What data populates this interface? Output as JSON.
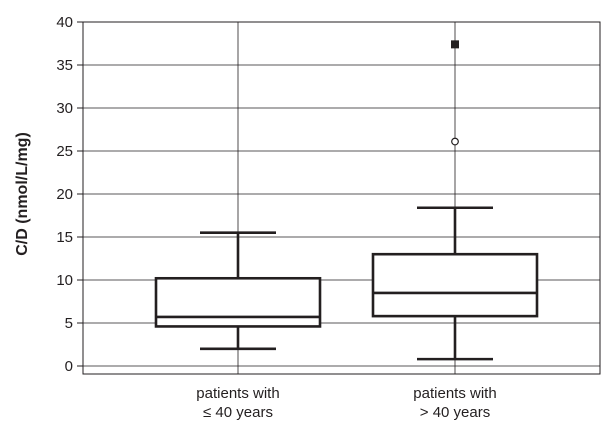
{
  "chart_data": {
    "type": "box",
    "title": "",
    "xlabel": "",
    "ylabel": "C/D (nmol/L/mg)",
    "ylim": [
      0,
      40
    ],
    "yticks": [
      0,
      5,
      10,
      15,
      20,
      25,
      30,
      35,
      40
    ],
    "grid": "y-major",
    "legend": "none",
    "categories": [
      {
        "label_lines": [
          "patients with",
          "≤ 40 years"
        ]
      },
      {
        "label_lines": [
          "patients with",
          "> 40 years"
        ]
      }
    ],
    "boxes": [
      {
        "whisker_low": 2.0,
        "q1": 4.6,
        "median": 5.7,
        "q3": 10.2,
        "whisker_high": 15.5,
        "outliers": [],
        "extremes": []
      },
      {
        "whisker_low": 0.8,
        "q1": 5.8,
        "median": 8.5,
        "q3": 13.0,
        "whisker_high": 18.4,
        "outliers": [
          26.1
        ],
        "extremes": [
          37.4
        ]
      }
    ],
    "colors": {
      "line": "#231f20",
      "grid": "#231f20",
      "background": "#ffffff"
    }
  }
}
